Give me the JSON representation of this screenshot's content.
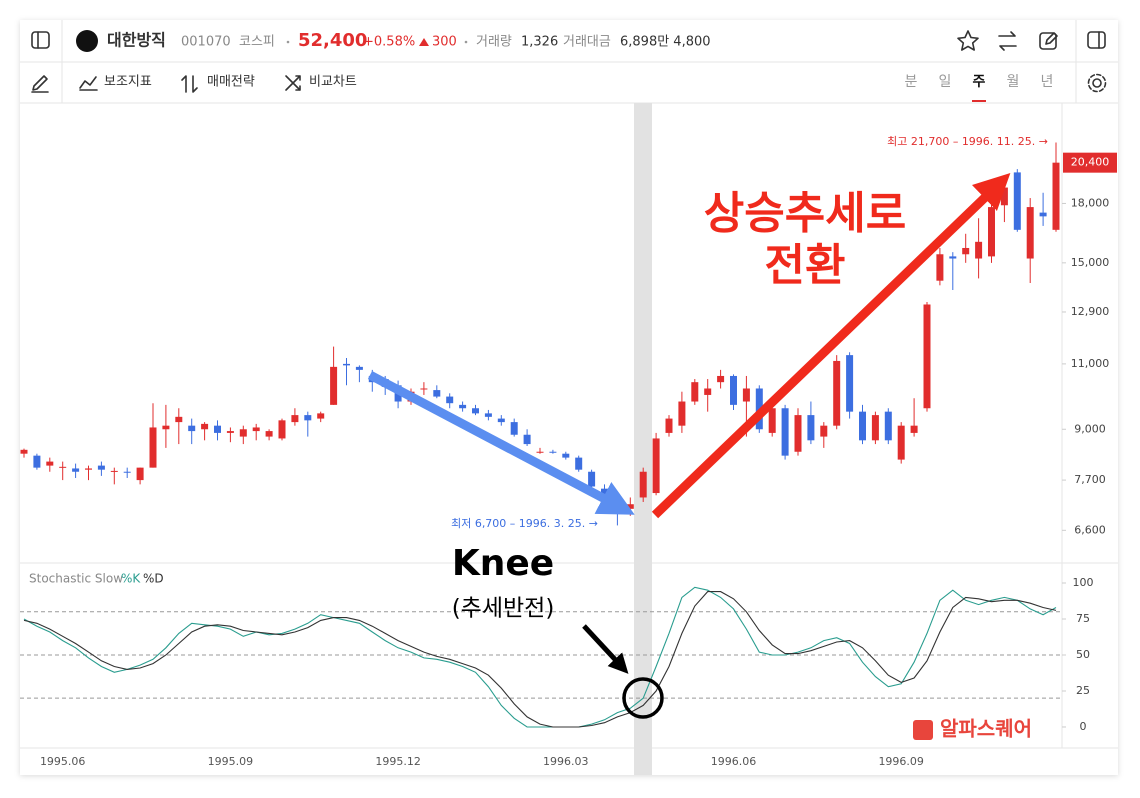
{
  "header": {
    "name": "대한방직",
    "code": "001070",
    "market": "코스피",
    "price": "52,400",
    "change_pct": "+0.58%",
    "change": "300",
    "volume_label": "거래량",
    "volume": "1,326",
    "amount_label": "거래대금",
    "amount": "6,898만 4,800"
  },
  "toolbar": {
    "items": [
      "보조지표",
      "매매전략",
      "비교차트"
    ],
    "periods": [
      "분",
      "일",
      "주",
      "월",
      "년"
    ],
    "selected_period_index": 2
  },
  "logo": "알파스퀘어",
  "chart_data": [
    {
      "type": "candlestick",
      "log_scale": true,
      "up_color": "#e12d2d",
      "down_color": "#3c6ee0",
      "categories": [
        null,
        null,
        null,
        "1995.06",
        null,
        null,
        null,
        null,
        null,
        null,
        null,
        null,
        null,
        null,
        null,
        null,
        "1995.09",
        null,
        null,
        null,
        null,
        null,
        null,
        null,
        null,
        null,
        null,
        null,
        null,
        "1995.12",
        null,
        null,
        null,
        null,
        null,
        null,
        null,
        null,
        null,
        null,
        null,
        null,
        "1996.03",
        null,
        null,
        null,
        null,
        null,
        null,
        null,
        null,
        null,
        null,
        null,
        null,
        "1996.06",
        null,
        null,
        null,
        null,
        null,
        null,
        null,
        null,
        null,
        null,
        null,
        null,
        "1996.09",
        null,
        null,
        null,
        null,
        null,
        null,
        null,
        null,
        null,
        null,
        null,
        null
      ],
      "open": [
        8350,
        8300,
        8050,
        8000,
        7980,
        7950,
        8050,
        7900,
        7900,
        7700,
        8000,
        9000,
        9200,
        9100,
        9000,
        9100,
        8900,
        8800,
        8950,
        8800,
        8750,
        9200,
        9400,
        9300,
        9700,
        11000,
        10900,
        10600,
        10500,
        10300,
        9800,
        10200,
        10150,
        9950,
        9700,
        9600,
        9450,
        9300,
        9200,
        8850,
        8400,
        8400,
        8350,
        8250,
        7900,
        7500,
        7250,
        7050,
        7300,
        7400,
        8900,
        9100,
        9800,
        10000,
        10400,
        10600,
        9800,
        10200,
        8900,
        9600,
        8400,
        9400,
        8800,
        9100,
        11300,
        9500,
        8700,
        9500,
        8200,
        8900,
        9600,
        14200,
        15300,
        15400,
        15200,
        15300,
        17900,
        19800,
        15200,
        17500,
        16600
      ],
      "high": [
        8480,
        8350,
        8250,
        8150,
        8100,
        8050,
        8150,
        8000,
        8000,
        8000,
        9750,
        9700,
        9600,
        9300,
        9200,
        9250,
        9050,
        9100,
        9150,
        9000,
        9300,
        9600,
        9500,
        9500,
        11600,
        11200,
        10950,
        10800,
        10600,
        10450,
        10200,
        10400,
        10300,
        10050,
        9800,
        9700,
        9550,
        9400,
        9300,
        9000,
        8500,
        8450,
        8400,
        8300,
        7950,
        7600,
        7350,
        7300,
        8000,
        8900,
        9400,
        10100,
        10500,
        10500,
        10800,
        10650,
        10600,
        10300,
        9800,
        9700,
        9600,
        9800,
        9200,
        11300,
        11400,
        9700,
        9500,
        9600,
        9200,
        9900,
        13300,
        15700,
        15500,
        16400,
        17200,
        18100,
        19200,
        20000,
        18300,
        18600,
        21700
      ],
      "low": [
        8250,
        7950,
        7900,
        7700,
        7750,
        7700,
        7800,
        7600,
        7750,
        7600,
        8000,
        8500,
        8600,
        8600,
        8700,
        8700,
        8650,
        8600,
        8700,
        8700,
        8700,
        9100,
        8800,
        9200,
        9700,
        10300,
        10400,
        10100,
        10000,
        9600,
        9700,
        10000,
        9900,
        9600,
        9500,
        9400,
        9250,
        9100,
        8800,
        8550,
        8350,
        8350,
        8200,
        7900,
        7500,
        7200,
        6700,
        6900,
        7200,
        7350,
        8800,
        8900,
        9700,
        9500,
        10200,
        9550,
        8800,
        8900,
        8800,
        8200,
        8300,
        8600,
        8500,
        9000,
        9300,
        8600,
        8600,
        8600,
        8100,
        8800,
        9500,
        14000,
        13800,
        15000,
        14300,
        15000,
        17000,
        16500,
        14100,
        16800,
        16500
      ],
      "close": [
        8450,
        8000,
        8150,
        8020,
        7900,
        7980,
        7950,
        7920,
        7880,
        8000,
        9050,
        9100,
        9350,
        8950,
        9150,
        8900,
        8950,
        9000,
        9050,
        8950,
        9250,
        9400,
        9250,
        9450,
        10900,
        10950,
        10800,
        10400,
        10250,
        9800,
        10100,
        10200,
        9950,
        9750,
        9600,
        9450,
        9350,
        9200,
        8850,
        8600,
        8400,
        8380,
        8250,
        7950,
        7550,
        7300,
        7000,
        7150,
        7900,
        8750,
        9300,
        9800,
        10400,
        10200,
        10600,
        9700,
        10200,
        9000,
        9600,
        8300,
        9400,
        8700,
        9100,
        11100,
        9500,
        8700,
        9400,
        8700,
        9100,
        9100,
        13200,
        15400,
        15200,
        15700,
        16000,
        17800,
        18900,
        16600,
        17800,
        17300,
        20400
      ],
      "ylim": [
        5970,
        24500
      ],
      "yticks": [
        {
          "value": 6600,
          "label": "6,600"
        },
        {
          "value": 7700,
          "label": "7,700"
        },
        {
          "value": 9000,
          "label": "9,000"
        },
        {
          "value": 11000,
          "label": "11,000"
        },
        {
          "value": 12900,
          "label": "12,900"
        },
        {
          "value": 15000,
          "label": "15,000"
        },
        {
          "value": 18000,
          "label": "18,000"
        }
      ],
      "price_tag": {
        "value": 20400,
        "label": "20,400"
      },
      "annotations": {
        "trend_1": "상승추세로",
        "trend_2": "전환",
        "knee": "Knee",
        "knee_note": "(추세반전)",
        "high": "최고 21,700 – 1996. 11. 25. →",
        "low": "최저 6,700 – 1996. 3. 25. →"
      }
    },
    {
      "type": "line",
      "title": "Stochastic Slow",
      "series": [
        {
          "name": "%K",
          "color": "#2a9d8f",
          "values": [
            75,
            70,
            66,
            60,
            55,
            48,
            42,
            38,
            40,
            43,
            47,
            55,
            65,
            72,
            71,
            70,
            68,
            63,
            66,
            64,
            65,
            68,
            72,
            78,
            76,
            74,
            72,
            66,
            60,
            55,
            52,
            48,
            47,
            45,
            42,
            38,
            28,
            15,
            6,
            0,
            0,
            0,
            0,
            0,
            2,
            5,
            10,
            13,
            20,
            42,
            65,
            90,
            97,
            95,
            90,
            82,
            68,
            52,
            50,
            50,
            52,
            55,
            60,
            62,
            58,
            45,
            35,
            28,
            30,
            45,
            65,
            88,
            95,
            88,
            85,
            88,
            90,
            88,
            82,
            78,
            83
          ]
        },
        {
          "name": "%D",
          "color": "#333333",
          "values": [
            74,
            72,
            68,
            63,
            58,
            52,
            46,
            42,
            40,
            41,
            44,
            50,
            58,
            66,
            70,
            71,
            70,
            67,
            66,
            65,
            64,
            66,
            69,
            74,
            76,
            76,
            74,
            70,
            65,
            60,
            56,
            52,
            49,
            47,
            44,
            41,
            36,
            27,
            16,
            7,
            2,
            0,
            0,
            0,
            1,
            3,
            7,
            10,
            15,
            25,
            42,
            65,
            84,
            94,
            94,
            89,
            80,
            67,
            57,
            51,
            51,
            53,
            56,
            59,
            60,
            55,
            46,
            36,
            31,
            34,
            46,
            66,
            83,
            90,
            89,
            87,
            88,
            88,
            86,
            83,
            81
          ]
        }
      ],
      "ylim": [
        -14.6,
        113.9
      ],
      "yticks": [
        0,
        25,
        50,
        75,
        100
      ],
      "levels": [
        20,
        50,
        80
      ]
    }
  ]
}
